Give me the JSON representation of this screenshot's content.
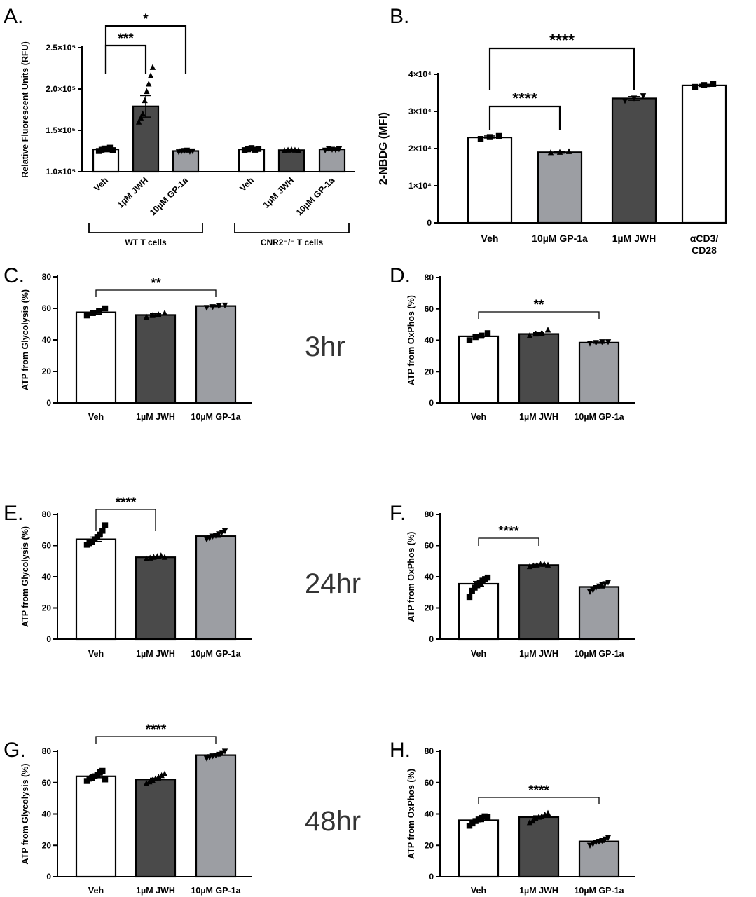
{
  "figure": {
    "time_labels": [
      "3hr",
      "24hr",
      "48hr"
    ]
  },
  "colors": {
    "Veh": "#ffffff",
    "1µM JWH": "#4a4a4a",
    "10µM GP-1a": "#9c9ea3",
    "αCD3/CD28": "#ffffff",
    "axis": "#000000"
  },
  "chart_data": [
    {
      "panel": "A.",
      "type": "bar",
      "ylabel": "Relative Fluorescent Units (RFU)",
      "ylim": [
        100000,
        250000
      ],
      "yticks": [
        {
          "value": 100000,
          "label": "1.0×10⁵"
        },
        {
          "value": 150000,
          "label": "1.5×10⁵"
        },
        {
          "value": 200000,
          "label": "2.0×10⁵"
        },
        {
          "value": 250000,
          "label": "2.5×10⁵"
        }
      ],
      "groups": [
        {
          "label": "WT T cells",
          "categories": [
            "Veh",
            "1µM JWH",
            "10µM GP-1a"
          ],
          "values": [
            127000,
            179000,
            125000
          ],
          "sem": [
            1500,
            13000,
            1200
          ],
          "points": [
            [
              125000,
              126500,
              128000,
              127000,
              129000,
              126000
            ],
            [
              160000,
              165000,
              170000,
              186000,
              197000,
              206000,
              216000,
              226000
            ],
            [
              124000,
              125000,
              125500,
              126000,
              124500,
              125000
            ]
          ],
          "markers": [
            "square",
            "triangle",
            "triangle-down"
          ]
        },
        {
          "label": "CNR2⁻/⁻ T cells",
          "categories": [
            "Veh",
            "1µM JWH",
            "10µM GP-1a"
          ],
          "values": [
            127000,
            126000,
            127000
          ],
          "sem": [
            1200,
            800,
            1400
          ],
          "points": [
            [
              126000,
              127000,
              128500,
              126500,
              127500
            ],
            [
              125500,
              126000,
              126500,
              126000,
              125800
            ],
            [
              126000,
              128000,
              127000,
              126500,
              127500
            ]
          ],
          "markers": [
            "square",
            "triangle",
            "triangle-down"
          ]
        }
      ],
      "comparisons": [
        {
          "from": "Veh",
          "to": "1µM JWH",
          "label": "***"
        },
        {
          "from": "Veh",
          "to": "10µM GP-1a",
          "label": "*"
        }
      ]
    },
    {
      "panel": "B.",
      "type": "bar",
      "ylabel": "2-NBDG (MFI)",
      "ylim": [
        0,
        40000
      ],
      "yticks": [
        {
          "value": 0,
          "label": "0"
        },
        {
          "value": 10000,
          "label": "1×10⁴"
        },
        {
          "value": 20000,
          "label": "2×10⁴"
        },
        {
          "value": 30000,
          "label": "3×10⁴"
        },
        {
          "value": 40000,
          "label": "4×10⁴"
        }
      ],
      "categories": [
        "Veh",
        "10µM GP-1a",
        "1µM JWH",
        "αCD3/ CD28"
      ],
      "values": [
        23000,
        19000,
        33500,
        37000
      ],
      "sem": [
        400,
        250,
        500,
        300
      ],
      "points": [
        [
          22600,
          23100,
          23400
        ],
        [
          18900,
          19000,
          19200
        ],
        [
          32900,
          33600,
          34200
        ],
        [
          36600,
          37100,
          37400
        ]
      ],
      "markers": [
        "square",
        "triangle",
        "triangle-down",
        "square"
      ],
      "comparisons": [
        {
          "from": "Veh",
          "to": "10µM GP-1a",
          "label": "****"
        },
        {
          "from": "Veh",
          "to": "1µM JWH",
          "label": "****"
        }
      ]
    },
    {
      "panel": "C.",
      "type": "bar",
      "ylabel": "ATP from Glycolysis (%)",
      "ylim": [
        0,
        80
      ],
      "yticks": [
        {
          "value": 0,
          "label": "0"
        },
        {
          "value": 20,
          "label": "20"
        },
        {
          "value": 40,
          "label": "40"
        },
        {
          "value": 60,
          "label": "60"
        },
        {
          "value": 80,
          "label": "80"
        }
      ],
      "categories": [
        "Veh",
        "1µM JWH",
        "10µM GP-1a"
      ],
      "values": [
        57.5,
        55.8,
        61.5
      ],
      "sem": [
        1.2,
        0.8,
        0.5
      ],
      "points": [
        [
          55.5,
          57,
          58.5,
          60
        ],
        [
          54.5,
          55.5,
          56,
          57
        ],
        [
          60.5,
          61,
          61.5,
          62
        ]
      ],
      "markers": [
        "square",
        "triangle",
        "triangle-down"
      ],
      "comparisons": [
        {
          "from": "Veh",
          "to": "10µM GP-1a",
          "label": "**"
        }
      ]
    },
    {
      "panel": "D.",
      "type": "bar",
      "ylabel": "ATP from OxPhos (%)",
      "ylim": [
        0,
        80
      ],
      "yticks": [
        {
          "value": 0,
          "label": "0"
        },
        {
          "value": 20,
          "label": "20"
        },
        {
          "value": 40,
          "label": "40"
        },
        {
          "value": 60,
          "label": "60"
        },
        {
          "value": 80,
          "label": "80"
        }
      ],
      "categories": [
        "Veh",
        "1µM JWH",
        "10µM GP-1a"
      ],
      "values": [
        42.5,
        44,
        38.5
      ],
      "sem": [
        1.2,
        0.8,
        0.4
      ],
      "points": [
        [
          40,
          42,
          43,
          44.5
        ],
        [
          43,
          44,
          44.5,
          46.5
        ],
        [
          38,
          38.5,
          39,
          39
        ]
      ],
      "markers": [
        "square",
        "triangle",
        "triangle-down"
      ],
      "comparisons": [
        {
          "from": "Veh",
          "to": "10µM GP-1a",
          "label": "**"
        }
      ]
    },
    {
      "panel": "E.",
      "type": "bar",
      "ylabel": "ATP from Glycolysis (%)",
      "ylim": [
        0,
        80
      ],
      "yticks": [
        {
          "value": 0,
          "label": "0"
        },
        {
          "value": 20,
          "label": "20"
        },
        {
          "value": 40,
          "label": "40"
        },
        {
          "value": 60,
          "label": "60"
        },
        {
          "value": 80,
          "label": "80"
        }
      ],
      "categories": [
        "Veh",
        "1µM JWH",
        "10µM GP-1a"
      ],
      "values": [
        64,
        52.5,
        66
      ],
      "sem": [
        1.4,
        0.6,
        0.7
      ],
      "points": [
        [
          60.5,
          61.5,
          62.5,
          64,
          65.5,
          67,
          69.5,
          73
        ],
        [
          51.5,
          52,
          52.5,
          53,
          53.5,
          52.5
        ],
        [
          64,
          65,
          66,
          66.5,
          67.5,
          68.5,
          69.5
        ]
      ],
      "markers": [
        "square",
        "triangle",
        "triangle-down"
      ],
      "comparisons": [
        {
          "from": "Veh",
          "to": "1µM JWH",
          "label": "****"
        }
      ]
    },
    {
      "panel": "F.",
      "type": "bar",
      "ylabel": "ATP from OxPhos (%)",
      "ylim": [
        0,
        80
      ],
      "yticks": [
        {
          "value": 0,
          "label": "0"
        },
        {
          "value": 20,
          "label": "20"
        },
        {
          "value": 40,
          "label": "40"
        },
        {
          "value": 60,
          "label": "60"
        },
        {
          "value": 80,
          "label": "80"
        }
      ],
      "categories": [
        "Veh",
        "1µM JWH",
        "10µM GP-1a"
      ],
      "values": [
        35.5,
        47.5,
        33.5
      ],
      "sem": [
        1.5,
        0.5,
        0.7
      ],
      "points": [
        [
          27,
          31,
          33,
          34.5,
          36,
          37.5,
          38.5,
          39.5
        ],
        [
          46.5,
          47,
          47.5,
          48,
          48,
          47.5
        ],
        [
          30.5,
          31.5,
          33,
          34,
          35,
          35.5,
          36.5
        ]
      ],
      "markers": [
        "square",
        "triangle",
        "triangle-down"
      ],
      "comparisons": [
        {
          "from": "Veh",
          "to": "1µM JWH",
          "label": "****"
        }
      ]
    },
    {
      "panel": "G.",
      "type": "bar",
      "ylabel": "ATP from Glycolysis (%)",
      "ylim": [
        0,
        80
      ],
      "yticks": [
        {
          "value": 0,
          "label": "0"
        },
        {
          "value": 20,
          "label": "20"
        },
        {
          "value": 40,
          "label": "40"
        },
        {
          "value": 60,
          "label": "60"
        },
        {
          "value": 80,
          "label": "80"
        }
      ],
      "categories": [
        "Veh",
        "1µM JWH",
        "10µM GP-1a"
      ],
      "values": [
        64,
        62,
        77.5
      ],
      "sem": [
        0.9,
        0.8,
        0.6
      ],
      "points": [
        [
          61,
          62.5,
          63,
          64,
          65,
          66.5,
          67.5,
          62
        ],
        [
          59.5,
          60.5,
          61.5,
          62.5,
          63.5,
          64.5,
          65.5
        ],
        [
          75.5,
          76.5,
          77,
          77.5,
          78,
          79,
          80
        ]
      ],
      "markers": [
        "square",
        "triangle",
        "triangle-down"
      ],
      "comparisons": [
        {
          "from": "Veh",
          "to": "10µM GP-1a",
          "label": "****"
        }
      ]
    },
    {
      "panel": "H.",
      "type": "bar",
      "ylabel": "ATP from OxPhos (%)",
      "ylim": [
        0,
        80
      ],
      "yticks": [
        {
          "value": 0,
          "label": "0"
        },
        {
          "value": 20,
          "label": "20"
        },
        {
          "value": 40,
          "label": "40"
        },
        {
          "value": 60,
          "label": "60"
        },
        {
          "value": 80,
          "label": "80"
        }
      ],
      "categories": [
        "Veh",
        "1µM JWH",
        "10µM GP-1a"
      ],
      "values": [
        36,
        38,
        22.5
      ],
      "sem": [
        0.9,
        0.8,
        0.6
      ],
      "points": [
        [
          32.5,
          34,
          35.5,
          36.5,
          37.5,
          38.5,
          38
        ],
        [
          34.5,
          35.5,
          37,
          38,
          38.5,
          39.5,
          40.5
        ],
        [
          20,
          21,
          22,
          22.5,
          23,
          24,
          25
        ]
      ],
      "markers": [
        "square",
        "triangle",
        "triangle-down"
      ],
      "comparisons": [
        {
          "from": "Veh",
          "to": "10µM GP-1a",
          "label": "****"
        }
      ]
    }
  ]
}
